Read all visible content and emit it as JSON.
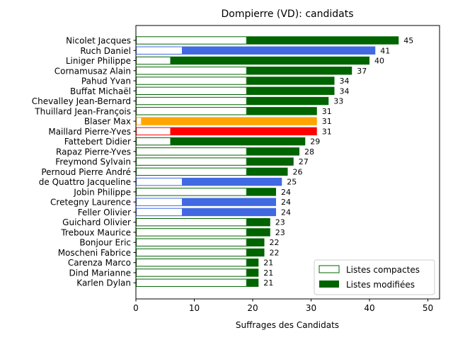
{
  "chart_data": {
    "type": "bar",
    "orientation": "horizontal",
    "title": "Dompierre (VD): candidats",
    "xlabel": "Suffrages des Candidats",
    "ylabel": "",
    "xlim": [
      0,
      52
    ],
    "xticks": [
      0,
      10,
      20,
      30,
      40,
      50
    ],
    "grid": false,
    "legend_position": "bottom-right",
    "legend": [
      {
        "label": "Listes compactes",
        "style": "outline",
        "color": "#006400"
      },
      {
        "label": "Listes modifiées",
        "style": "filled",
        "color": "#006400"
      }
    ],
    "candidates": [
      {
        "name": "Nicolet Jacques",
        "compactes": 19,
        "total": 45,
        "color": "#006400"
      },
      {
        "name": "Ruch Daniel",
        "compactes": 8,
        "total": 41,
        "color": "#4169e1"
      },
      {
        "name": "Liniger Philippe",
        "compactes": 6,
        "total": 40,
        "color": "#006400"
      },
      {
        "name": "Cornamusaz Alain",
        "compactes": 19,
        "total": 37,
        "color": "#006400"
      },
      {
        "name": "Pahud Yvan",
        "compactes": 19,
        "total": 34,
        "color": "#006400"
      },
      {
        "name": "Buffat Michaël",
        "compactes": 19,
        "total": 34,
        "color": "#006400"
      },
      {
        "name": "Chevalley Jean-Bernard",
        "compactes": 19,
        "total": 33,
        "color": "#006400"
      },
      {
        "name": "Thuillard Jean-François",
        "compactes": 19,
        "total": 31,
        "color": "#006400"
      },
      {
        "name": "Blaser Max",
        "compactes": 1,
        "total": 31,
        "color": "#ffa500"
      },
      {
        "name": "Maillard Pierre-Yves",
        "compactes": 6,
        "total": 31,
        "color": "#ff0000"
      },
      {
        "name": "Fattebert Didier",
        "compactes": 6,
        "total": 29,
        "color": "#006400"
      },
      {
        "name": "Rapaz Pierre-Yves",
        "compactes": 19,
        "total": 28,
        "color": "#006400"
      },
      {
        "name": "Freymond Sylvain",
        "compactes": 19,
        "total": 27,
        "color": "#006400"
      },
      {
        "name": "Pernoud Pierre André",
        "compactes": 19,
        "total": 26,
        "color": "#006400"
      },
      {
        "name": "de Quattro Jacqueline",
        "compactes": 8,
        "total": 25,
        "color": "#4169e1"
      },
      {
        "name": "Jobin Philippe",
        "compactes": 19,
        "total": 24,
        "color": "#006400"
      },
      {
        "name": "Cretegny Laurence",
        "compactes": 8,
        "total": 24,
        "color": "#4169e1"
      },
      {
        "name": "Feller Olivier",
        "compactes": 8,
        "total": 24,
        "color": "#4169e1"
      },
      {
        "name": "Guichard Olivier",
        "compactes": 19,
        "total": 23,
        "color": "#006400"
      },
      {
        "name": "Treboux Maurice",
        "compactes": 19,
        "total": 23,
        "color": "#006400"
      },
      {
        "name": "Bonjour Eric",
        "compactes": 19,
        "total": 22,
        "color": "#006400"
      },
      {
        "name": "Moscheni Fabrice",
        "compactes": 19,
        "total": 22,
        "color": "#006400"
      },
      {
        "name": "Carenza Marco",
        "compactes": 19,
        "total": 21,
        "color": "#006400"
      },
      {
        "name": "Dind Marianne",
        "compactes": 19,
        "total": 21,
        "color": "#006400"
      },
      {
        "name": "Karlen Dylan",
        "compactes": 19,
        "total": 21,
        "color": "#006400"
      }
    ]
  }
}
